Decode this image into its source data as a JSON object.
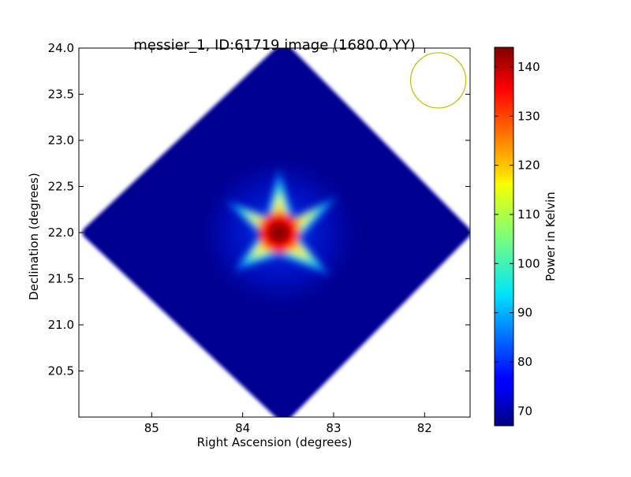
{
  "chart_data": {
    "type": "heatmap",
    "title": "messier_1, ID:61719 image (1680.0,YY)",
    "xlabel": "Right Ascension (degrees)",
    "ylabel": "Declination (degrees)",
    "colorbar_label": "Power in Kelvin",
    "colormap": "jet",
    "xlim": [
      85.8,
      81.5
    ],
    "ylim": [
      20.0,
      24.0
    ],
    "x_ticks": [
      {
        "value": 85,
        "label": "85"
      },
      {
        "value": 84,
        "label": "84"
      },
      {
        "value": 83,
        "label": "83"
      },
      {
        "value": 82,
        "label": "82"
      }
    ],
    "y_ticks": [
      {
        "value": 20.5,
        "label": "20.5"
      },
      {
        "value": 21.0,
        "label": "21.0"
      },
      {
        "value": 21.5,
        "label": "21.5"
      },
      {
        "value": 22.0,
        "label": "22.0"
      },
      {
        "value": 22.5,
        "label": "22.5"
      },
      {
        "value": 23.0,
        "label": "23.0"
      },
      {
        "value": 23.5,
        "label": "23.5"
      },
      {
        "value": 24.0,
        "label": "24.0"
      }
    ],
    "colorbar_range": [
      67,
      144
    ],
    "colorbar_ticks": [
      {
        "value": 70,
        "label": "70"
      },
      {
        "value": 80,
        "label": "80"
      },
      {
        "value": 90,
        "label": "90"
      },
      {
        "value": 100,
        "label": "100"
      },
      {
        "value": 110,
        "label": "110"
      },
      {
        "value": 120,
        "label": "120"
      },
      {
        "value": 130,
        "label": "130"
      },
      {
        "value": 140,
        "label": "140"
      }
    ],
    "image_footprint": {
      "shape": "diamond",
      "corners_ra_dec": [
        [
          83.55,
          24.0
        ],
        [
          81.55,
          22.0
        ],
        [
          83.55,
          20.0
        ],
        [
          85.7,
          22.0
        ]
      ]
    },
    "peak": {
      "ra": 83.6,
      "dec": 22.0,
      "value": 144
    },
    "background_value": 70,
    "beam_marker": {
      "ra": 81.85,
      "dec": 23.65,
      "color": "#bfbf00"
    }
  }
}
